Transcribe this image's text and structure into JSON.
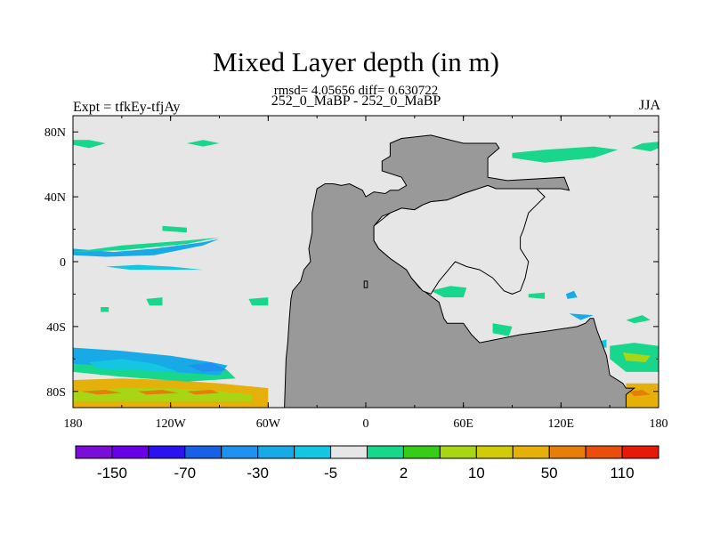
{
  "chart_data": {
    "type": "heatmap",
    "title": "Mixed Layer depth (in m)",
    "subtitle": "rmsd= 4.05656 diff= 0.630722",
    "experiment_label": "252_0_MaBP - 252_0_MaBP",
    "left_label": "Expt = tfkEy-tfjAy",
    "right_label": "JJA",
    "x_ticks": [
      "180",
      "120W",
      "60W",
      "0",
      "60E",
      "120E",
      "180"
    ],
    "x_tick_lon": [
      -180,
      -120,
      -60,
      0,
      60,
      120,
      180
    ],
    "y_ticks": [
      "80N",
      "40N",
      "0",
      "40S",
      "80S"
    ],
    "y_tick_lat": [
      80,
      40,
      0,
      -40,
      -80
    ],
    "xlim": [
      -180,
      180
    ],
    "ylim": [
      -90,
      90
    ],
    "background_color": "#e6e6e6",
    "land_color": "#999999",
    "colorbar": {
      "colors": [
        "#7a0ed6",
        "#6a00e6",
        "#2c12ee",
        "#1860e4",
        "#1e92ee",
        "#18aae6",
        "#14c6e2",
        "#e6e6e6",
        "#18d68c",
        "#36cc18",
        "#a8d614",
        "#d0cc0a",
        "#e6b00a",
        "#e67e0a",
        "#ea4e0c",
        "#e61a0a"
      ],
      "labels": [
        "-150",
        "-70",
        "-30",
        "-5",
        "2",
        "10",
        "50",
        "110"
      ]
    },
    "land_polygon": [
      [
        -50,
        -90
      ],
      [
        -49,
        -60
      ],
      [
        -48,
        -50
      ],
      [
        -47,
        -35
      ],
      [
        -46,
        -23
      ],
      [
        -45,
        -18
      ],
      [
        -40,
        -12
      ],
      [
        -38,
        -5
      ],
      [
        -34,
        0
      ],
      [
        -35,
        8
      ],
      [
        -33,
        18
      ],
      [
        -33,
        30
      ],
      [
        -30,
        45
      ],
      [
        -25,
        48
      ],
      [
        -20,
        48
      ],
      [
        -15,
        47
      ],
      [
        -10,
        48
      ],
      [
        -2,
        44
      ],
      [
        0,
        40
      ],
      [
        5,
        43
      ],
      [
        12,
        42
      ],
      [
        15,
        44
      ],
      [
        20,
        44
      ],
      [
        25,
        47
      ],
      [
        22,
        52
      ],
      [
        10,
        56
      ],
      [
        10,
        62
      ],
      [
        15,
        65
      ],
      [
        15,
        73
      ],
      [
        22,
        76
      ],
      [
        40,
        78
      ],
      [
        60,
        73
      ],
      [
        80,
        73
      ],
      [
        82,
        70
      ],
      [
        75,
        64
      ],
      [
        75,
        52
      ],
      [
        87,
        50
      ],
      [
        122,
        52
      ],
      [
        125,
        44
      ],
      [
        120,
        45
      ],
      [
        105,
        45
      ],
      [
        95,
        45
      ],
      [
        80,
        45
      ],
      [
        75,
        47
      ],
      [
        60,
        42
      ],
      [
        50,
        38
      ],
      [
        40,
        37
      ],
      [
        35,
        35
      ],
      [
        30,
        32
      ],
      [
        22,
        33
      ],
      [
        15,
        30
      ],
      [
        10,
        28
      ],
      [
        5,
        22
      ],
      [
        5,
        13
      ],
      [
        8,
        8
      ],
      [
        15,
        2
      ],
      [
        25,
        -5
      ],
      [
        28,
        -10
      ],
      [
        33,
        -16
      ],
      [
        45,
        -25
      ],
      [
        48,
        -35
      ],
      [
        50,
        -38
      ],
      [
        55,
        -38
      ],
      [
        60,
        -38
      ],
      [
        65,
        -45
      ],
      [
        70,
        -50
      ],
      [
        80,
        -48
      ],
      [
        95,
        -45
      ],
      [
        110,
        -43
      ],
      [
        130,
        -40
      ],
      [
        135,
        -38
      ],
      [
        138,
        -35
      ],
      [
        140,
        -35
      ],
      [
        142,
        -42
      ],
      [
        148,
        -58
      ],
      [
        150,
        -70
      ],
      [
        158,
        -75
      ],
      [
        160,
        -78
      ],
      [
        165,
        -78
      ],
      [
        160,
        -82
      ],
      [
        160,
        -90
      ]
    ],
    "sea_polygon": [
      [
        5,
        22
      ],
      [
        15,
        30
      ],
      [
        22,
        33
      ],
      [
        30,
        32
      ],
      [
        35,
        35
      ],
      [
        40,
        37
      ],
      [
        50,
        38
      ],
      [
        60,
        42
      ],
      [
        75,
        47
      ],
      [
        80,
        45
      ],
      [
        95,
        45
      ],
      [
        105,
        45
      ],
      [
        110,
        40
      ],
      [
        105,
        35
      ],
      [
        100,
        30
      ],
      [
        97,
        20
      ],
      [
        95,
        15
      ],
      [
        95,
        8
      ],
      [
        100,
        0
      ],
      [
        98,
        -10
      ],
      [
        95,
        -18
      ],
      [
        90,
        -20
      ],
      [
        85,
        -18
      ],
      [
        78,
        -10
      ],
      [
        70,
        -5
      ],
      [
        62,
        -3
      ],
      [
        55,
        0
      ],
      [
        45,
        -12
      ],
      [
        40,
        -20
      ],
      [
        35,
        -18
      ],
      [
        28,
        -10
      ],
      [
        25,
        -5
      ],
      [
        15,
        2
      ],
      [
        8,
        8
      ],
      [
        5,
        13
      ]
    ]
  }
}
